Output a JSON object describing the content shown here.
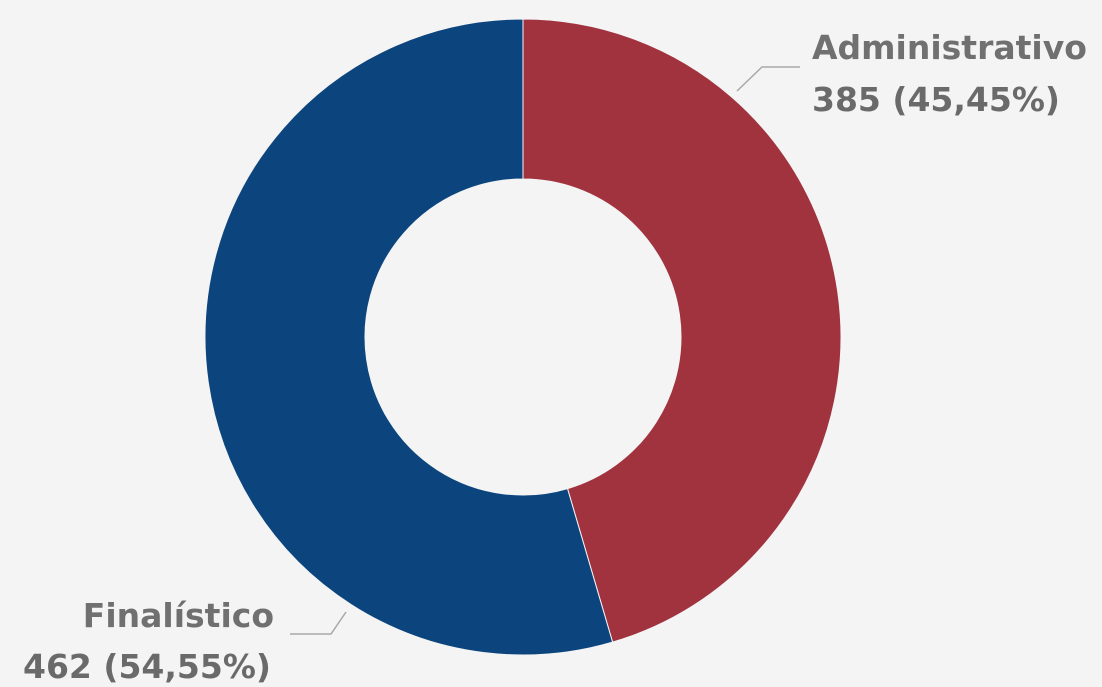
{
  "chart_data": {
    "type": "pie",
    "donut": true,
    "categories": [
      "Administrativo",
      "Finalístico"
    ],
    "values": [
      385,
      462
    ],
    "percent_labels": [
      "45,45%",
      "54,55%"
    ],
    "data_labels": [
      "385 (45,45%)",
      "462 (54,55%)"
    ],
    "colors": [
      "#a1333e",
      "#0c457d"
    ],
    "legend": "none",
    "title": ""
  }
}
